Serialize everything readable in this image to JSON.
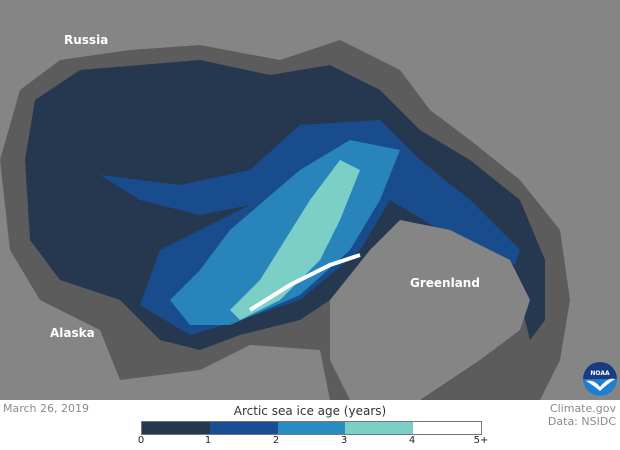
{
  "map": {
    "labels": {
      "russia": "Russia",
      "alaska": "Alaska",
      "greenland": "Greenland"
    },
    "colors": {
      "land": "#858585",
      "coast": "#5c5c5c",
      "open_water": "#5c5c5c"
    }
  },
  "date": "March 26, 2019",
  "legend": {
    "title": "Arctic sea ice age (years)",
    "bins": [
      {
        "from": "0",
        "to": "1",
        "color": "#263850"
      },
      {
        "from": "1",
        "to": "2",
        "color": "#184f94"
      },
      {
        "from": "2",
        "to": "3",
        "color": "#2a8bbf"
      },
      {
        "from": "3",
        "to": "4",
        "color": "#7ccfc6"
      },
      {
        "from": "4",
        "to": "5+",
        "color": "#ffffff"
      }
    ],
    "ticks": [
      "0",
      "1",
      "2",
      "3",
      "4",
      "5+"
    ]
  },
  "credit": {
    "source": "Climate.gov",
    "data": "Data: NSIDC"
  },
  "logo": {
    "text": "NOAA"
  }
}
